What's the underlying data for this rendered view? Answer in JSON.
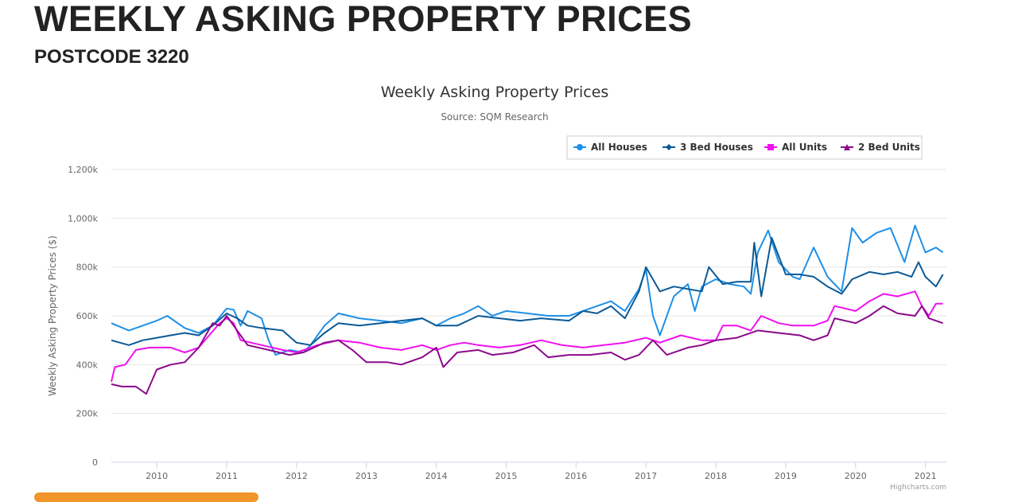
{
  "page": {
    "heading": "WEEKLY ASKING PROPERTY PRICES",
    "subheading": "POSTCODE 3220"
  },
  "chart_data": {
    "type": "line",
    "title": "Weekly Asking Property Prices",
    "subtitle": "Source: SQM Research",
    "ylabel": "Weekly Asking Property Prices ($)",
    "xlabel": "",
    "credits": "Highcharts.com",
    "xlim": [
      2009.35,
      2021.3
    ],
    "ylim": [
      0,
      1200
    ],
    "x_ticks": [
      2010,
      2011,
      2012,
      2013,
      2014,
      2015,
      2016,
      2017,
      2018,
      2019,
      2020,
      2021
    ],
    "y_ticks": [
      {
        "v": 0,
        "label": "0"
      },
      {
        "v": 200,
        "label": "200k"
      },
      {
        "v": 400,
        "label": "400k"
      },
      {
        "v": 600,
        "label": "600k"
      },
      {
        "v": 800,
        "label": "800k"
      },
      {
        "v": 1000,
        "label": "1,000k"
      },
      {
        "v": 1200,
        "label": "1,200k"
      }
    ],
    "grid": true,
    "legend_position": "top-right",
    "series": [
      {
        "name": "All Houses",
        "color": "#1e90e8",
        "marker": "circle",
        "points": [
          [
            2009.35,
            570
          ],
          [
            2009.6,
            540
          ],
          [
            2009.8,
            560
          ],
          [
            2010.0,
            580
          ],
          [
            2010.15,
            600
          ],
          [
            2010.4,
            550
          ],
          [
            2010.6,
            530
          ],
          [
            2010.8,
            560
          ],
          [
            2011.0,
            630
          ],
          [
            2011.1,
            625
          ],
          [
            2011.2,
            560
          ],
          [
            2011.3,
            620
          ],
          [
            2011.5,
            590
          ],
          [
            2011.6,
            500
          ],
          [
            2011.7,
            440
          ],
          [
            2011.9,
            460
          ],
          [
            2012.1,
            450
          ],
          [
            2012.2,
            480
          ],
          [
            2012.4,
            560
          ],
          [
            2012.6,
            610
          ],
          [
            2012.9,
            590
          ],
          [
            2013.2,
            580
          ],
          [
            2013.5,
            570
          ],
          [
            2013.8,
            590
          ],
          [
            2014.0,
            560
          ],
          [
            2014.2,
            590
          ],
          [
            2014.4,
            610
          ],
          [
            2014.6,
            640
          ],
          [
            2014.8,
            600
          ],
          [
            2015.0,
            620
          ],
          [
            2015.3,
            610
          ],
          [
            2015.6,
            600
          ],
          [
            2015.9,
            600
          ],
          [
            2016.1,
            620
          ],
          [
            2016.3,
            640
          ],
          [
            2016.5,
            660
          ],
          [
            2016.7,
            620
          ],
          [
            2016.9,
            710
          ],
          [
            2017.0,
            790
          ],
          [
            2017.1,
            600
          ],
          [
            2017.2,
            520
          ],
          [
            2017.4,
            680
          ],
          [
            2017.6,
            730
          ],
          [
            2017.7,
            620
          ],
          [
            2017.8,
            720
          ],
          [
            2018.0,
            750
          ],
          [
            2018.2,
            730
          ],
          [
            2018.4,
            720
          ],
          [
            2018.5,
            690
          ],
          [
            2018.6,
            860
          ],
          [
            2018.75,
            950
          ],
          [
            2018.9,
            820
          ],
          [
            2019.1,
            760
          ],
          [
            2019.2,
            750
          ],
          [
            2019.4,
            880
          ],
          [
            2019.6,
            760
          ],
          [
            2019.8,
            700
          ],
          [
            2019.95,
            960
          ],
          [
            2020.1,
            900
          ],
          [
            2020.3,
            940
          ],
          [
            2020.5,
            960
          ],
          [
            2020.7,
            820
          ],
          [
            2020.85,
            970
          ],
          [
            2021.0,
            860
          ],
          [
            2021.15,
            880
          ],
          [
            2021.25,
            860
          ]
        ]
      },
      {
        "name": "3 Bed Houses",
        "color": "#0b5a96",
        "marker": "diamond",
        "points": [
          [
            2009.35,
            500
          ],
          [
            2009.6,
            480
          ],
          [
            2009.8,
            500
          ],
          [
            2010.0,
            510
          ],
          [
            2010.2,
            520
          ],
          [
            2010.4,
            530
          ],
          [
            2010.6,
            520
          ],
          [
            2010.8,
            560
          ],
          [
            2011.0,
            610
          ],
          [
            2011.15,
            590
          ],
          [
            2011.3,
            560
          ],
          [
            2011.5,
            550
          ],
          [
            2011.8,
            540
          ],
          [
            2012.0,
            490
          ],
          [
            2012.2,
            480
          ],
          [
            2012.4,
            530
          ],
          [
            2012.6,
            570
          ],
          [
            2012.9,
            560
          ],
          [
            2013.2,
            570
          ],
          [
            2013.5,
            580
          ],
          [
            2013.8,
            590
          ],
          [
            2014.0,
            560
          ],
          [
            2014.3,
            560
          ],
          [
            2014.6,
            600
          ],
          [
            2014.9,
            590
          ],
          [
            2015.2,
            580
          ],
          [
            2015.5,
            590
          ],
          [
            2015.9,
            580
          ],
          [
            2016.1,
            620
          ],
          [
            2016.3,
            610
          ],
          [
            2016.5,
            640
          ],
          [
            2016.7,
            590
          ],
          [
            2016.9,
            700
          ],
          [
            2017.0,
            800
          ],
          [
            2017.2,
            700
          ],
          [
            2017.4,
            720
          ],
          [
            2017.6,
            710
          ],
          [
            2017.8,
            700
          ],
          [
            2017.9,
            800
          ],
          [
            2018.1,
            730
          ],
          [
            2018.3,
            740
          ],
          [
            2018.5,
            740
          ],
          [
            2018.55,
            900
          ],
          [
            2018.65,
            680
          ],
          [
            2018.8,
            920
          ],
          [
            2019.0,
            770
          ],
          [
            2019.2,
            770
          ],
          [
            2019.4,
            760
          ],
          [
            2019.6,
            720
          ],
          [
            2019.8,
            690
          ],
          [
            2019.95,
            750
          ],
          [
            2020.2,
            780
          ],
          [
            2020.4,
            770
          ],
          [
            2020.6,
            780
          ],
          [
            2020.8,
            760
          ],
          [
            2020.9,
            820
          ],
          [
            2021.0,
            760
          ],
          [
            2021.15,
            720
          ],
          [
            2021.25,
            770
          ]
        ]
      },
      {
        "name": "All Units",
        "color": "#f010f0",
        "marker": "square",
        "points": [
          [
            2009.35,
            330
          ],
          [
            2009.4,
            390
          ],
          [
            2009.55,
            400
          ],
          [
            2009.7,
            460
          ],
          [
            2009.9,
            470
          ],
          [
            2010.2,
            470
          ],
          [
            2010.4,
            450
          ],
          [
            2010.6,
            470
          ],
          [
            2010.75,
            520
          ],
          [
            2010.9,
            570
          ],
          [
            2011.0,
            590
          ],
          [
            2011.1,
            570
          ],
          [
            2011.2,
            500
          ],
          [
            2011.5,
            480
          ],
          [
            2011.8,
            460
          ],
          [
            2012.0,
            450
          ],
          [
            2012.3,
            480
          ],
          [
            2012.6,
            500
          ],
          [
            2012.9,
            490
          ],
          [
            2013.2,
            470
          ],
          [
            2013.5,
            460
          ],
          [
            2013.8,
            480
          ],
          [
            2014.0,
            460
          ],
          [
            2014.2,
            480
          ],
          [
            2014.4,
            490
          ],
          [
            2014.6,
            480
          ],
          [
            2014.9,
            470
          ],
          [
            2015.2,
            480
          ],
          [
            2015.5,
            500
          ],
          [
            2015.8,
            480
          ],
          [
            2016.1,
            470
          ],
          [
            2016.4,
            480
          ],
          [
            2016.7,
            490
          ],
          [
            2017.0,
            510
          ],
          [
            2017.2,
            490
          ],
          [
            2017.5,
            520
          ],
          [
            2017.8,
            500
          ],
          [
            2018.0,
            500
          ],
          [
            2018.1,
            560
          ],
          [
            2018.3,
            560
          ],
          [
            2018.5,
            540
          ],
          [
            2018.65,
            600
          ],
          [
            2018.9,
            570
          ],
          [
            2019.1,
            560
          ],
          [
            2019.4,
            560
          ],
          [
            2019.6,
            580
          ],
          [
            2019.7,
            640
          ],
          [
            2020.0,
            620
          ],
          [
            2020.2,
            660
          ],
          [
            2020.4,
            690
          ],
          [
            2020.6,
            680
          ],
          [
            2020.85,
            700
          ],
          [
            2020.95,
            640
          ],
          [
            2021.05,
            600
          ],
          [
            2021.15,
            650
          ],
          [
            2021.25,
            650
          ]
        ]
      },
      {
        "name": "2 Bed Units",
        "color": "#8b0a8b",
        "marker": "triangle",
        "points": [
          [
            2009.35,
            320
          ],
          [
            2009.5,
            310
          ],
          [
            2009.7,
            310
          ],
          [
            2009.85,
            280
          ],
          [
            2010.0,
            380
          ],
          [
            2010.2,
            400
          ],
          [
            2010.4,
            410
          ],
          [
            2010.6,
            470
          ],
          [
            2010.8,
            570
          ],
          [
            2010.9,
            560
          ],
          [
            2011.0,
            600
          ],
          [
            2011.15,
            540
          ],
          [
            2011.3,
            480
          ],
          [
            2011.6,
            460
          ],
          [
            2011.9,
            440
          ],
          [
            2012.1,
            450
          ],
          [
            2012.4,
            490
          ],
          [
            2012.6,
            500
          ],
          [
            2012.8,
            460
          ],
          [
            2013.0,
            410
          ],
          [
            2013.3,
            410
          ],
          [
            2013.5,
            400
          ],
          [
            2013.8,
            430
          ],
          [
            2014.0,
            470
          ],
          [
            2014.1,
            390
          ],
          [
            2014.3,
            450
          ],
          [
            2014.6,
            460
          ],
          [
            2014.8,
            440
          ],
          [
            2015.1,
            450
          ],
          [
            2015.4,
            480
          ],
          [
            2015.6,
            430
          ],
          [
            2015.9,
            440
          ],
          [
            2016.2,
            440
          ],
          [
            2016.5,
            450
          ],
          [
            2016.7,
            420
          ],
          [
            2016.9,
            440
          ],
          [
            2017.0,
            470
          ],
          [
            2017.1,
            500
          ],
          [
            2017.3,
            440
          ],
          [
            2017.6,
            470
          ],
          [
            2017.8,
            480
          ],
          [
            2018.0,
            500
          ],
          [
            2018.3,
            510
          ],
          [
            2018.6,
            540
          ],
          [
            2018.9,
            530
          ],
          [
            2019.2,
            520
          ],
          [
            2019.4,
            500
          ],
          [
            2019.6,
            520
          ],
          [
            2019.7,
            590
          ],
          [
            2020.0,
            570
          ],
          [
            2020.2,
            600
          ],
          [
            2020.4,
            640
          ],
          [
            2020.6,
            610
          ],
          [
            2020.85,
            600
          ],
          [
            2020.95,
            640
          ],
          [
            2021.05,
            590
          ],
          [
            2021.25,
            570
          ]
        ]
      }
    ]
  }
}
